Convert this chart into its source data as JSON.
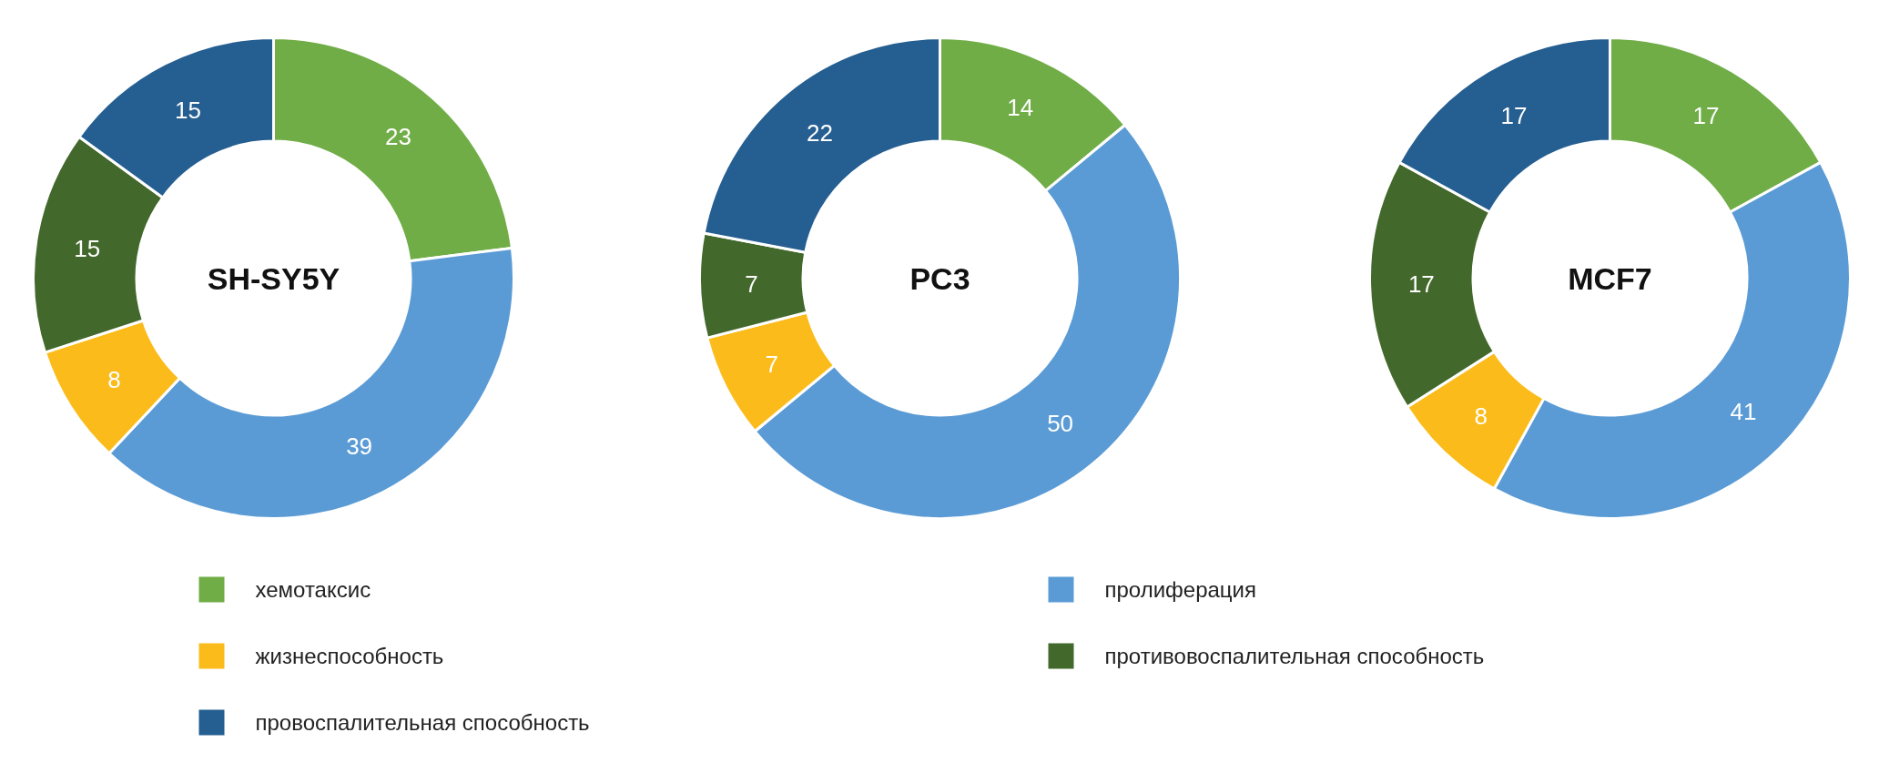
{
  "chart_data": [
    {
      "type": "donut",
      "title": "SH-SY5Y",
      "categories": [
        "хемотаксис",
        "пролиферация",
        "жизнеспособность",
        "противовоспалительная способность",
        "провоспалительная способность"
      ],
      "values": [
        23,
        39,
        8,
        15,
        15
      ],
      "colors": [
        "#70ad47",
        "#5b9bd5",
        "#fbbc1b",
        "#43682b",
        "#255e91"
      ],
      "data_labels": true,
      "legend": "bottom"
    },
    {
      "type": "donut",
      "title": "PC3",
      "categories": [
        null,
        null,
        null,
        null,
        null
      ],
      "values": [
        14,
        50,
        7,
        7,
        22
      ],
      "colors": [
        "#70ad47",
        "#5b9bd5",
        "#fbbc1b",
        "#43682b",
        "#255e91"
      ],
      "data_labels": true
    },
    {
      "type": "donut",
      "title": "MCF7",
      "categories": [
        null,
        null,
        null,
        null,
        null
      ],
      "values": [
        17,
        41,
        8,
        17,
        17
      ],
      "colors": [
        "#70ad47",
        "#5b9bd5",
        "#fbbc1b",
        "#43682b",
        "#255e91"
      ],
      "data_labels": true
    }
  ]
}
